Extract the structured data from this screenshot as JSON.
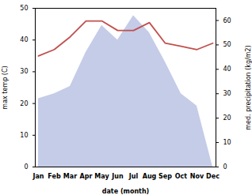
{
  "chart_data": {
    "type": "line",
    "categories": [
      "Jan",
      "Feb",
      "Mar",
      "Apr",
      "May",
      "Jun",
      "Jul",
      "Aug",
      "Sep",
      "Oct",
      "Nov",
      "Dec"
    ],
    "xlabel": "date (month)",
    "ylabel": "max temp (C)",
    "y2label": "med. precipitation (kg/m2)",
    "series": [
      {
        "type": "area",
        "color": "#c5cce8",
        "axis": "y2",
        "values": [
          28,
          30,
          33,
          47,
          58,
          52,
          62,
          55,
          43,
          30,
          25,
          0
        ]
      },
      {
        "type": "line",
        "color": "#c0504d",
        "values": [
          35,
          37,
          41,
          46,
          46,
          43,
          43,
          45.5,
          39,
          38,
          37,
          39
        ]
      }
    ],
    "ylim": [
      0,
      50
    ],
    "yticks": [
      0,
      10,
      20,
      30,
      40,
      50
    ],
    "y2lim": [
      0,
      65
    ],
    "y2ticks": [
      0,
      10,
      20,
      30,
      40,
      50,
      60
    ]
  }
}
